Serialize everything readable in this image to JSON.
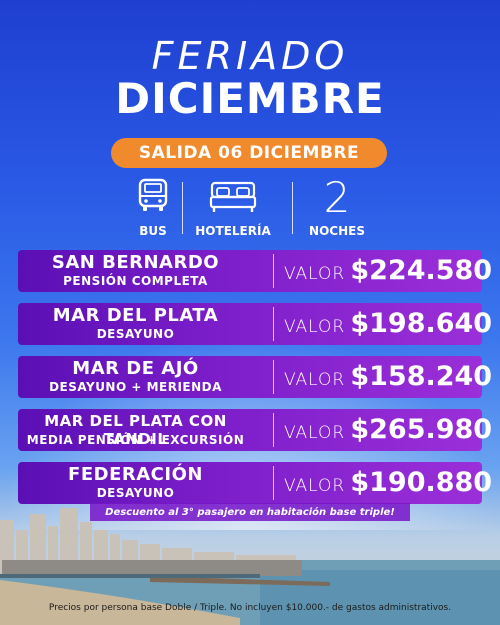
{
  "header": {
    "line1": "FERIADO",
    "line2": "DICIEMBRE",
    "departure": "SALIDA 06 DICIEMBRE"
  },
  "features": [
    {
      "icon": "bus-icon",
      "label": "BUS"
    },
    {
      "icon": "bed-icon",
      "label": "HOTELERÍA"
    },
    {
      "icon": "number-2",
      "value": "2",
      "label": "NOCHES"
    }
  ],
  "offers": [
    {
      "destination": "SAN BERNARDO",
      "plan": "PENSIÓN COMPLETA",
      "value_label": "VALOR",
      "price": "$224.580"
    },
    {
      "destination": "MAR DEL PLATA",
      "plan": "DESAYUNO",
      "value_label": "VALOR",
      "price": "$198.640"
    },
    {
      "destination": "MAR DE AJÓ",
      "plan": "DESAYUNO + MERIENDA",
      "value_label": "VALOR",
      "price": "$158.240"
    },
    {
      "destination": "MAR DEL PLATA CON TANDIL",
      "plan": "MEDIA PENSIÓN + EXCURSIÓN",
      "value_label": "VALOR",
      "price": "$265.980"
    },
    {
      "destination": "FEDERACIÓN",
      "plan": "DESAYUNO",
      "value_label": "VALOR",
      "price": "$190.880"
    }
  ],
  "promo": "Descuento al 3° pasajero en habitación base triple!",
  "footer": "Precios por persona base Doble / Triple. No incluyen $10.000.- de gastos administrativos.",
  "colors": {
    "accent": "#f08a2c",
    "card": "#7a1dc9",
    "sky": "#2a5ae6"
  }
}
